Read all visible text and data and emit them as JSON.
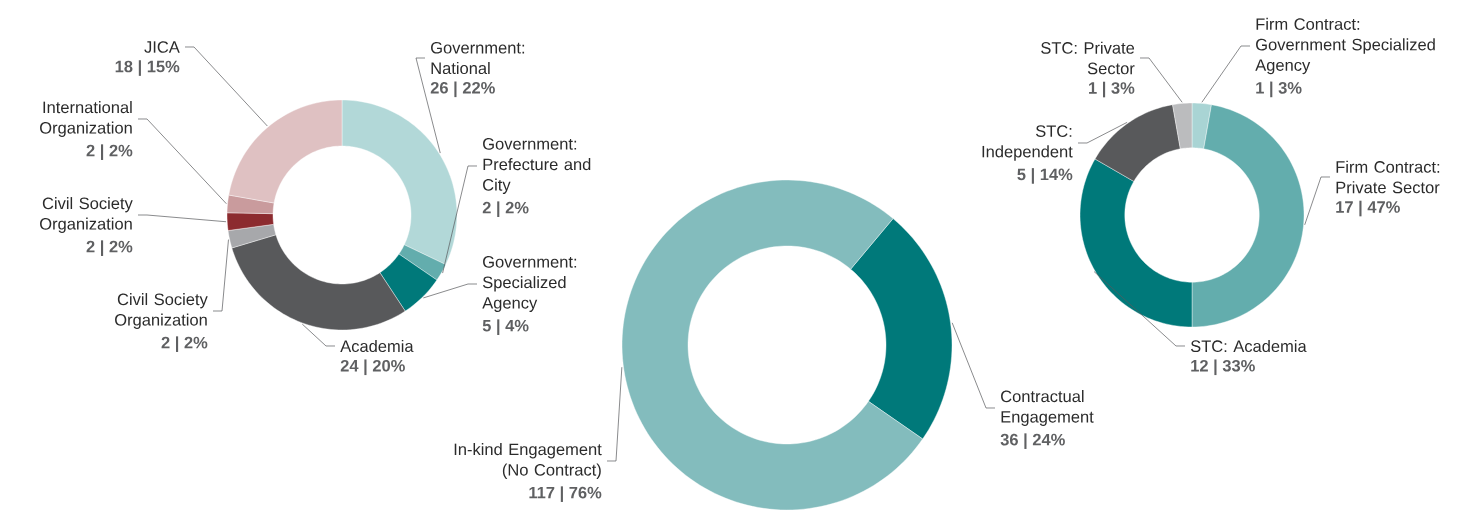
{
  "chart_data": [
    {
      "type": "donut",
      "categories": [
        "Government: National",
        "Government: Prefecture and City",
        "Government: Specialized Agency",
        "Academia",
        "Civil Society Organization",
        "Civil Society Organization",
        "International Organization",
        "JICA"
      ],
      "values": [
        26,
        2,
        5,
        24,
        2,
        2,
        2,
        18
      ],
      "value_labels": [
        "26 | 22%",
        "2 | 2%",
        "5 | 4%",
        "24 | 20%",
        "2 | 2%",
        "2 | 2%",
        "2 | 2%",
        "18 | 15%"
      ],
      "colors": [
        "#b2d8d8",
        "#63adad",
        "#00797a",
        "#58595b",
        "#a7a8ab",
        "#8c2b2f",
        "#c99b9d",
        "#dfc1c2"
      ]
    },
    {
      "type": "donut",
      "categories": [
        "Contractual Engagement",
        "In-kind Engagement (No Contract)"
      ],
      "values": [
        36,
        117
      ],
      "value_labels": [
        "36 | 24%",
        "117 | 76%"
      ],
      "colors": [
        "#00797a",
        "#83bcbd"
      ]
    },
    {
      "type": "donut",
      "categories": [
        "Firm Contract: Government Specialized Agency",
        "Firm Contract: Private Sector",
        "STC: Academia",
        "STC: Independent",
        "STC: Private Sector"
      ],
      "values": [
        1,
        17,
        12,
        5,
        1
      ],
      "value_labels": [
        "1 | 3%",
        "17 | 47%",
        "12 | 33%",
        "5 | 14%",
        "1 | 3%"
      ],
      "colors": [
        "#a9d4d4",
        "#63adad",
        "#00797a",
        "#58595b",
        "#bbbcbe"
      ]
    }
  ]
}
